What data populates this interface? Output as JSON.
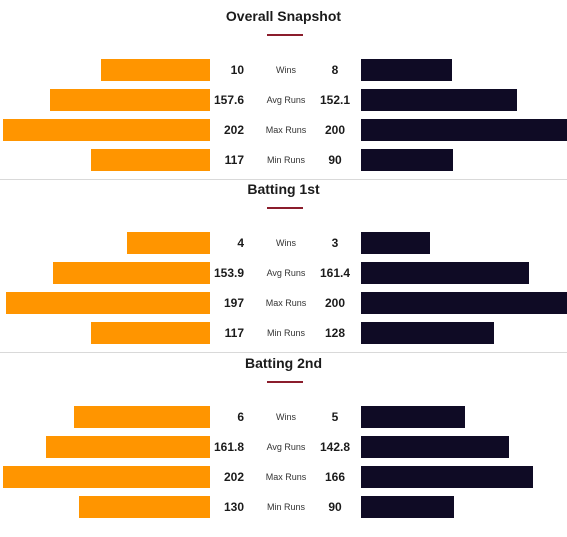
{
  "colors": {
    "team_a": "#ff9500",
    "team_b": "#0f0b25",
    "accent": "#8b1d2c"
  },
  "chart_data": [
    {
      "type": "bar",
      "title": "Overall Snapshot",
      "categories": [
        "Wins",
        "Avg Runs",
        "Max Runs",
        "Min Runs"
      ],
      "series": [
        {
          "values": [
            "10",
            "157.6",
            "202",
            "117"
          ]
        },
        {
          "values": [
            "8",
            "152.1",
            "200",
            "90"
          ]
        }
      ],
      "bar_fraction": [
        [
          0.526,
          0.444
        ],
        [
          0.77,
          0.755
        ],
        [
          0.995,
          1.0
        ],
        [
          0.571,
          0.448
        ]
      ]
    },
    {
      "type": "bar",
      "title": "Batting 1st",
      "categories": [
        "Wins",
        "Avg Runs",
        "Max Runs",
        "Min Runs"
      ],
      "series": [
        {
          "values": [
            "4",
            "153.9",
            "197",
            "117"
          ]
        },
        {
          "values": [
            "3",
            "161.4",
            "200",
            "128"
          ]
        }
      ],
      "bar_fraction": [
        [
          0.397,
          0.337
        ],
        [
          0.757,
          0.817
        ],
        [
          0.983,
          1.0
        ],
        [
          0.571,
          0.644
        ]
      ]
    },
    {
      "type": "bar",
      "title": "Batting 2nd",
      "categories": [
        "Wins",
        "Avg Runs",
        "Max Runs",
        "Min Runs"
      ],
      "series": [
        {
          "values": [
            "6",
            "161.8",
            "202",
            "130"
          ]
        },
        {
          "values": [
            "5",
            "142.8",
            "166",
            "90"
          ]
        }
      ],
      "bar_fraction": [
        [
          0.653,
          0.505
        ],
        [
          0.79,
          0.718
        ],
        [
          0.995,
          0.837
        ],
        [
          0.632,
          0.45
        ]
      ]
    }
  ]
}
